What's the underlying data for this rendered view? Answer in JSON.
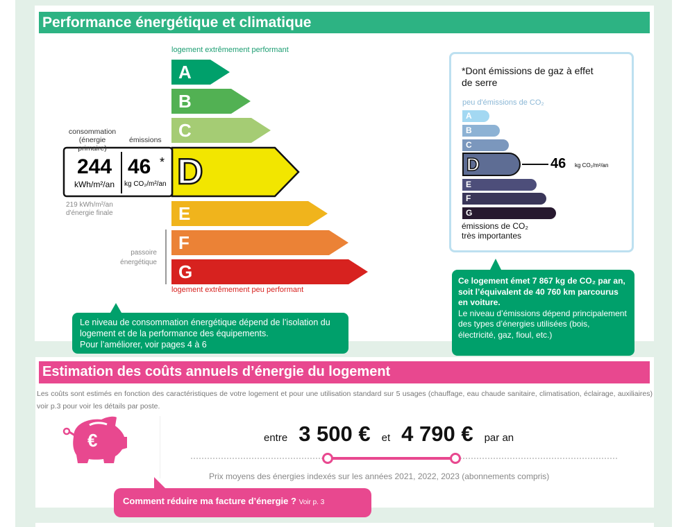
{
  "energy": {
    "title": "Performance énergétique et climatique",
    "top_label": "logement extrêmement performant",
    "bottom_label": "logement extrêmement peu performant",
    "classes": [
      {
        "letter": "A",
        "color": "#00a06b"
      },
      {
        "letter": "B",
        "color": "#52b153"
      },
      {
        "letter": "C",
        "color": "#a5cc74"
      },
      {
        "letter": "D",
        "color": "#f2e600"
      },
      {
        "letter": "E",
        "color": "#f0b41c"
      },
      {
        "letter": "F",
        "color": "#eb8236"
      },
      {
        "letter": "G",
        "color": "#d7221f"
      }
    ],
    "current_class": "D",
    "consumption_label": "consommation",
    "consumption_sub": "(énergie primaire)",
    "emissions_label": "émissions",
    "consumption_value": "244",
    "consumption_unit": "kWh/m²/an",
    "emissions_value": "46",
    "emissions_star": "*",
    "emissions_unit": "kg CO₂/m²/an",
    "final_energy": "219 kWh/m²/an",
    "final_energy_label": "d'énergie finale",
    "passoire_1": "passoire",
    "passoire_2": "énergétique",
    "bubble_1": "Le niveau de consommation énergétique dépend de l’isolation du logement et de la performance des équipements.",
    "bubble_2": "Pour l’améliorer, voir pages 4 à 6"
  },
  "climate": {
    "note": "*Dont émissions de gaz à effet de serre",
    "top_label": "peu d'émissions de CO₂",
    "bottom_label_1": "émissions de CO₂",
    "bottom_label_2": "très importantes",
    "classes": [
      {
        "letter": "A",
        "color": "#a3d8f2"
      },
      {
        "letter": "B",
        "color": "#8db2d4"
      },
      {
        "letter": "C",
        "color": "#7b97bd"
      },
      {
        "letter": "D",
        "color": "#5e6d94"
      },
      {
        "letter": "E",
        "color": "#4d4e7a"
      },
      {
        "letter": "F",
        "color": "#3a3659"
      },
      {
        "letter": "G",
        "color": "#27192f"
      }
    ],
    "current_class": "D",
    "value": "46",
    "unit": "kg CO₂/m²/an",
    "bubble_bold": "Ce logement émet 7 867 kg de CO₂ par an, soit l’équivalent de 40 760 km parcourus en voiture.",
    "bubble_text": "Le niveau d’émissions dépend principalement des types d’énergies utilisées (bois, électricité, gaz, fioul, etc.)"
  },
  "costs": {
    "title": "Estimation des coûts annuels d’énergie du logement",
    "description": "Les coûts sont estimés en fonction des caractéristiques de votre logement et pour une utilisation standard sur 5 usages (chauffage, eau chaude sanitaire, climatisation, éclairage, auxiliaires) voir p.3 pour voir les détails par poste.",
    "between": "entre",
    "low": "3 500 €",
    "and": "et",
    "high": "4 790 €",
    "per_year": "par an",
    "prices_note": "Prix moyens des énergies indexés sur les années 2021, 2022, 2023 (abonnements compris)",
    "link_bold": "Comment réduire ma facture d’énergie ?",
    "link_small": "Voir p. 3",
    "icon": "piggy-bank-euro-icon",
    "color": "#e8488f"
  },
  "colors": {
    "green_header": "#2db383",
    "pink_header": "#e8488f",
    "bubble_green": "#00a06b"
  }
}
